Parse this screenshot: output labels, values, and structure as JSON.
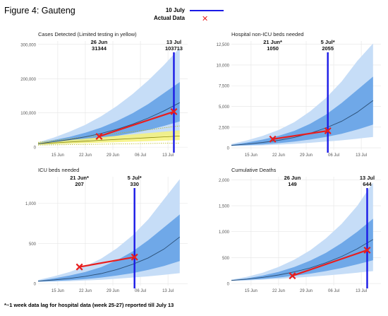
{
  "figure_title": "Figure 4: Gauteng",
  "legend": {
    "line_label": "10 July",
    "marker_label": "Actual Data",
    "line_color": "#1a1ae6",
    "marker_color": "#e81e1e"
  },
  "footnote": "*~1 week data lag for hospital data (week 25-27) reported till July 13",
  "colors": {
    "band_outer": "#c6ddf7",
    "band_inner": "#6fa8e8",
    "median": "#2b4f76",
    "vline": "#1a1ae6",
    "actual": "#e81e1e",
    "yellow": "#f6f27a"
  },
  "chart_data": [
    {
      "type": "area",
      "title": "Cases Detected (Limited testing in yellow)",
      "xticks": [
        "15 Jun",
        "22 Jun",
        "29 Jun",
        "06 Jul",
        "13 Jul"
      ],
      "xlim": [
        0,
        38
      ],
      "yticks": [
        "0",
        "100,000",
        "200,000",
        "300,000"
      ],
      "ytick_values": [
        0,
        100000,
        200000,
        300000
      ],
      "ylim": [
        -8000,
        310000
      ],
      "median": {
        "x": [
          0,
          4,
          8,
          12,
          16,
          20,
          24,
          28,
          32,
          36
        ],
        "y": [
          10000,
          16000,
          22000,
          30000,
          40000,
          52000,
          67000,
          85000,
          106000,
          130000
        ]
      },
      "band_inner": {
        "x": [
          0,
          4,
          8,
          12,
          16,
          20,
          24,
          28,
          32,
          36
        ],
        "lower": [
          8000,
          11000,
          15000,
          20000,
          26000,
          33000,
          41000,
          50000,
          62000,
          75000
        ],
        "upper": [
          12000,
          21000,
          30000,
          42000,
          57000,
          76000,
          99000,
          126000,
          158000,
          190000
        ]
      },
      "band_outer": {
        "x": [
          0,
          4,
          8,
          12,
          16,
          20,
          24,
          28,
          32,
          36
        ],
        "lower": [
          6000,
          8000,
          10000,
          13000,
          16000,
          20000,
          24000,
          28000,
          33000,
          38000
        ],
        "upper": [
          14000,
          28000,
          45000,
          65000,
          90000,
          120000,
          155000,
          195000,
          240000,
          290000
        ]
      },
      "band_limited": {
        "x": [
          0,
          4,
          8,
          12,
          16,
          20,
          24,
          28,
          32,
          36
        ],
        "lower": [
          7000,
          8500,
          10000,
          11500,
          13000,
          14500,
          16000,
          17500,
          19000,
          20500
        ],
        "upper": [
          13000,
          17000,
          21000,
          25000,
          29000,
          33000,
          37000,
          41000,
          45000,
          49000
        ]
      },
      "limited_median": {
        "x": [
          0,
          4,
          8,
          12,
          16,
          20,
          24,
          28,
          32,
          36
        ],
        "y": [
          10000,
          12500,
          15000,
          17500,
          20000,
          22500,
          25000,
          27500,
          30000,
          32500
        ]
      },
      "limited_dotted": [
        {
          "x": [
            0,
            12,
            24,
            36
          ],
          "y": [
            14000,
            30000,
            45000,
            62000
          ]
        },
        {
          "x": [
            0,
            12,
            24,
            36
          ],
          "y": [
            6000,
            8000,
            10000,
            12000
          ]
        }
      ],
      "vline_x": 34.5,
      "actual": {
        "x": [
          15.5,
          34.5
        ],
        "y": [
          31344,
          103713
        ]
      },
      "annotations": [
        {
          "date": "26 Jun",
          "value": "31344",
          "x": 15.5
        },
        {
          "date": "13 Jul",
          "value": "103713",
          "x": 34.5
        }
      ]
    },
    {
      "type": "area",
      "title": "Hospital non-ICU beds needed",
      "xticks": [
        "15 Jun",
        "22 Jun",
        "29 Jun",
        "06 Jul",
        "13 Jul"
      ],
      "xlim": [
        0,
        38
      ],
      "yticks": [
        "0",
        "2,500",
        "5,000",
        "7,500",
        "10,000",
        "12,500"
      ],
      "ytick_values": [
        0,
        2500,
        5000,
        7500,
        10000,
        12500
      ],
      "ylim": [
        -250,
        12900
      ],
      "median": {
        "x": [
          0,
          4,
          8,
          12,
          16,
          20,
          24,
          28,
          32,
          36
        ],
        "y": [
          300,
          450,
          650,
          900,
          1250,
          1750,
          2400,
          3200,
          4300,
          5700
        ]
      },
      "band_inner": {
        "x": [
          0,
          4,
          8,
          12,
          16,
          20,
          24,
          28,
          32,
          36
        ],
        "lower": [
          250,
          320,
          420,
          560,
          750,
          1000,
          1300,
          1700,
          2200,
          2800
        ],
        "upper": [
          350,
          650,
          1000,
          1450,
          2050,
          2900,
          4000,
          5400,
          7000,
          8600
        ]
      },
      "band_outer": {
        "x": [
          0,
          4,
          8,
          12,
          16,
          20,
          24,
          28,
          32,
          36
        ],
        "lower": [
          200,
          250,
          300,
          380,
          480,
          600,
          750,
          900,
          1100,
          1300
        ],
        "upper": [
          450,
          900,
          1450,
          2150,
          3100,
          4400,
          6000,
          8000,
          10500,
          12600
        ]
      },
      "vline_x": 24.5,
      "actual": {
        "x": [
          10.5,
          24.5
        ],
        "y": [
          1050,
          2055
        ]
      },
      "annotations": [
        {
          "date": "21 Jun*",
          "value": "1050",
          "x": 10.5
        },
        {
          "date": "5 Jul*",
          "value": "2055",
          "x": 24.5
        }
      ]
    },
    {
      "type": "area",
      "title": "ICU beds needed",
      "xticks": [
        "15 Jun",
        "22 Jun",
        "29 Jun",
        "06 Jul",
        "13 Jul"
      ],
      "xlim": [
        0,
        38
      ],
      "yticks": [
        "0",
        "500",
        "1,000"
      ],
      "ytick_values": [
        0,
        500,
        1000
      ],
      "ylim": [
        -25,
        1330
      ],
      "median": {
        "x": [
          0,
          4,
          8,
          12,
          16,
          20,
          24,
          28,
          32,
          36
        ],
        "y": [
          30,
          45,
          65,
          90,
          125,
          175,
          240,
          320,
          430,
          580
        ]
      },
      "band_inner": {
        "x": [
          0,
          4,
          8,
          12,
          16,
          20,
          24,
          28,
          32,
          36
        ],
        "lower": [
          25,
          32,
          42,
          56,
          75,
          100,
          130,
          170,
          220,
          280
        ],
        "upper": [
          35,
          65,
          100,
          145,
          205,
          290,
          400,
          540,
          700,
          860
        ]
      },
      "band_outer": {
        "x": [
          0,
          4,
          8,
          12,
          16,
          20,
          24,
          28,
          32,
          36
        ],
        "lower": [
          20,
          25,
          30,
          38,
          48,
          60,
          75,
          90,
          110,
          130
        ],
        "upper": [
          45,
          90,
          145,
          215,
          310,
          440,
          600,
          800,
          1050,
          1300
        ]
      },
      "vline_x": 24.5,
      "actual": {
        "x": [
          10.5,
          24.5
        ],
        "y": [
          207,
          330
        ]
      },
      "annotations": [
        {
          "date": "21 Jun*",
          "value": "207",
          "x": 10.5
        },
        {
          "date": "5 Jul*",
          "value": "330",
          "x": 24.5
        }
      ]
    },
    {
      "type": "area",
      "title": "Cumulative Deaths",
      "xticks": [
        "15 Jun",
        "22 Jun",
        "29 Jun",
        "06 Jul",
        "13 Jul"
      ],
      "xlim": [
        0,
        38
      ],
      "yticks": [
        "0",
        "500",
        "1,000",
        "1,500",
        "2,000"
      ],
      "ytick_values": [
        0,
        500,
        1000,
        1500,
        2000
      ],
      "ylim": [
        -40,
        2060
      ],
      "median": {
        "x": [
          0,
          4,
          8,
          12,
          16,
          20,
          24,
          28,
          32,
          36
        ],
        "y": [
          60,
          85,
          120,
          165,
          225,
          300,
          400,
          520,
          670,
          850
        ]
      },
      "band_inner": {
        "x": [
          0,
          4,
          8,
          12,
          16,
          20,
          24,
          28,
          32,
          36
        ],
        "lower": [
          55,
          70,
          90,
          115,
          150,
          190,
          240,
          300,
          370,
          450
        ],
        "upper": [
          65,
          100,
          155,
          225,
          320,
          440,
          590,
          780,
          1000,
          1250
        ]
      },
      "band_outer": {
        "x": [
          0,
          4,
          8,
          12,
          16,
          20,
          24,
          28,
          32,
          36
        ],
        "lower": [
          50,
          60,
          75,
          90,
          110,
          130,
          155,
          180,
          210,
          240
        ],
        "upper": [
          75,
          130,
          210,
          320,
          460,
          640,
          870,
          1150,
          1500,
          1950
        ]
      },
      "vline_x": 34.5,
      "actual": {
        "x": [
          15.5,
          34.5
        ],
        "y": [
          149,
          644
        ]
      },
      "annotations": [
        {
          "date": "26 Jun",
          "value": "149",
          "x": 15.5
        },
        {
          "date": "13 Jul",
          "value": "644",
          "x": 34.5
        }
      ]
    }
  ]
}
